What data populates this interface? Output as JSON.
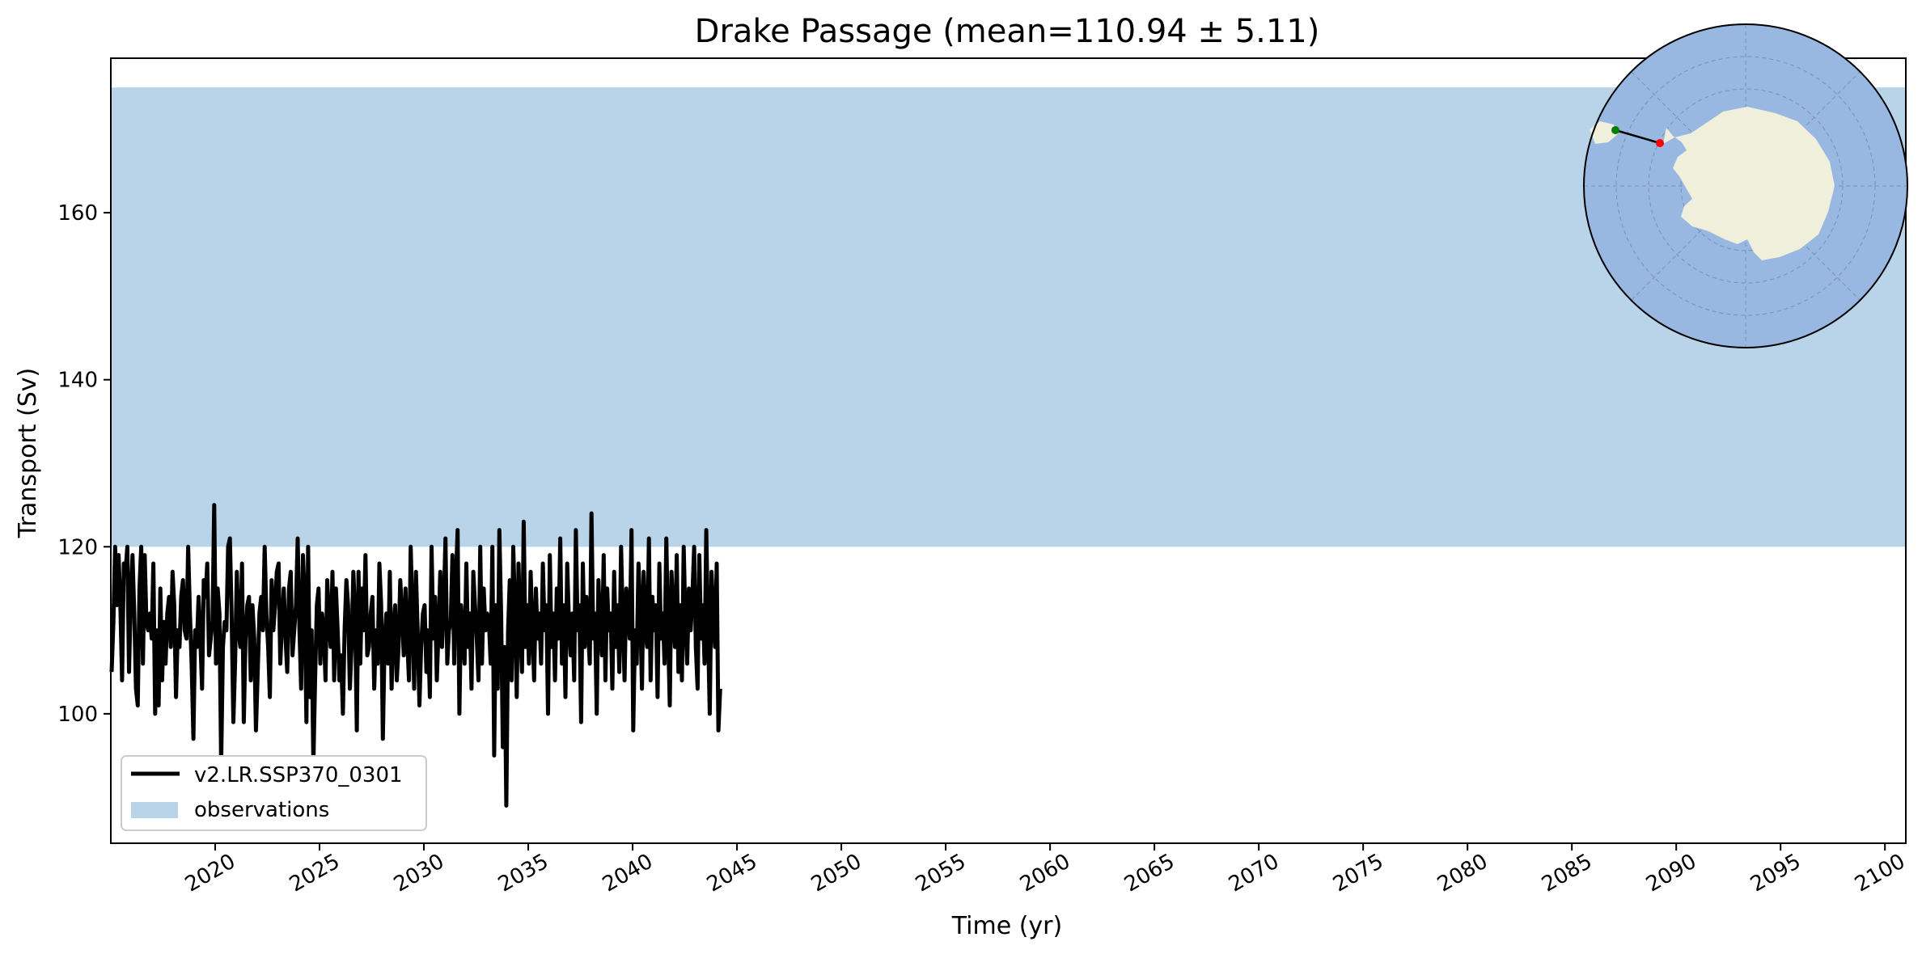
{
  "chart_data": {
    "type": "line",
    "title": "Drake Passage (mean=110.94 ± 5.11)",
    "xlabel": "Time (yr)",
    "ylabel": "Transport (Sv)",
    "xlim": [
      2015,
      2101
    ],
    "ylim": [
      84.5,
      178.5
    ],
    "x_ticks": [
      "2020",
      "2025",
      "2030",
      "2035",
      "2040",
      "2045",
      "2050",
      "2055",
      "2060",
      "2065",
      "2070",
      "2075",
      "2080",
      "2085",
      "2090",
      "2095",
      "2100"
    ],
    "y_ticks": [
      "100",
      "120",
      "140",
      "160"
    ],
    "observation_band": {
      "name": "observations",
      "y_range": [
        120,
        175
      ],
      "color": "#b9d4e8"
    },
    "series": [
      {
        "name": "v2.LR.SSP370_0301",
        "color": "#000000",
        "x_start": 2015.04,
        "step": 0.0833,
        "values": [
          105,
          111,
          120,
          113,
          119,
          113,
          104,
          118,
          117,
          120,
          105,
          114,
          119,
          112,
          103,
          101,
          115,
          120,
          106,
          119,
          111,
          110,
          112,
          109,
          118,
          100,
          110,
          101,
          115,
          104,
          111,
          106,
          112,
          114,
          108,
          117,
          113,
          102,
          110,
          108,
          114,
          116,
          110,
          109,
          120,
          112,
          106,
          97,
          110,
          108,
          114,
          109,
          103,
          116,
          114,
          118,
          107,
          109,
          111,
          125,
          106,
          115,
          112,
          94,
          108,
          111,
          110,
          120,
          121,
          112,
          99,
          106,
          117,
          110,
          108,
          118,
          99,
          109,
          113,
          114,
          104,
          113,
          109,
          98,
          105,
          112,
          114,
          110,
          120,
          112,
          108,
          102,
          116,
          110,
          113,
          117,
          118,
          106,
          111,
          115,
          109,
          105,
          115,
          117,
          107,
          110,
          113,
          121,
          110,
          103,
          119,
          114,
          99,
          120,
          102,
          110,
          94,
          104,
          113,
          115,
          106,
          112,
          110,
          104,
          116,
          111,
          108,
          117,
          104,
          115,
          110,
          104,
          107,
          100,
          110,
          116,
          113,
          103,
          108,
          117,
          112,
          98,
          117,
          106,
          115,
          110,
          119,
          107,
          108,
          112,
          114,
          103,
          110,
          106,
          118,
          113,
          97,
          109,
          112,
          106,
          117,
          103,
          110,
          113,
          104,
          108,
          116,
          112,
          107,
          115,
          109,
          104,
          120,
          112,
          103,
          117,
          110,
          101,
          108,
          112,
          113,
          105,
          110,
          102,
          120,
          109,
          114,
          104,
          110,
          117,
          108,
          113,
          121,
          106,
          110,
          111,
          119,
          106,
          116,
          122,
          100,
          113,
          110,
          106,
          118,
          108,
          112,
          103,
          117,
          113,
          109,
          104,
          120,
          106,
          115,
          110,
          112,
          111,
          106,
          120,
          95,
          113,
          103,
          122,
          112,
          96,
          108,
          89,
          110,
          116,
          104,
          120,
          112,
          102,
          118,
          110,
          105,
          123,
          108,
          113,
          106,
          117,
          110,
          104,
          115,
          109,
          112,
          106,
          118,
          110,
          113,
          100,
          119,
          108,
          112,
          104,
          115,
          109,
          121,
          106,
          113,
          102,
          118,
          111,
          107,
          112,
          104,
          122,
          110,
          113,
          99,
          118,
          108,
          114,
          110,
          106,
          124,
          109,
          112,
          100,
          116,
          110,
          107,
          119,
          104,
          115,
          110,
          112,
          103,
          117,
          108,
          113,
          105,
          120,
          111,
          104,
          115,
          112,
          109,
          122,
          98,
          110,
          106,
          118,
          113,
          103,
          117,
          110,
          108,
          121,
          104,
          114,
          110,
          113,
          102,
          118,
          109,
          112,
          106,
          121,
          110,
          101,
          117,
          112,
          108,
          119,
          105,
          113,
          104,
          120,
          111,
          106,
          115,
          110,
          114,
          120,
          108,
          103,
          119,
          109,
          113,
          106,
          122,
          110,
          100,
          117,
          112,
          108,
          118,
          98,
          103
        ]
      }
    ],
    "legend": {
      "position": "lower-left",
      "entries": [
        {
          "label": "v2.LR.SSP370_0301",
          "kind": "line",
          "color": "#000000"
        },
        {
          "label": "observations",
          "kind": "patch",
          "color": "#b9d4e8"
        }
      ]
    },
    "inset_map": {
      "position": "top-right",
      "projection": "south-polar stereographic",
      "ocean_color": "#98b7e1",
      "land_color": "#efefdc",
      "section_endpoints": [
        {
          "color": "#008000"
        },
        {
          "color": "#ff0000"
        }
      ]
    }
  }
}
